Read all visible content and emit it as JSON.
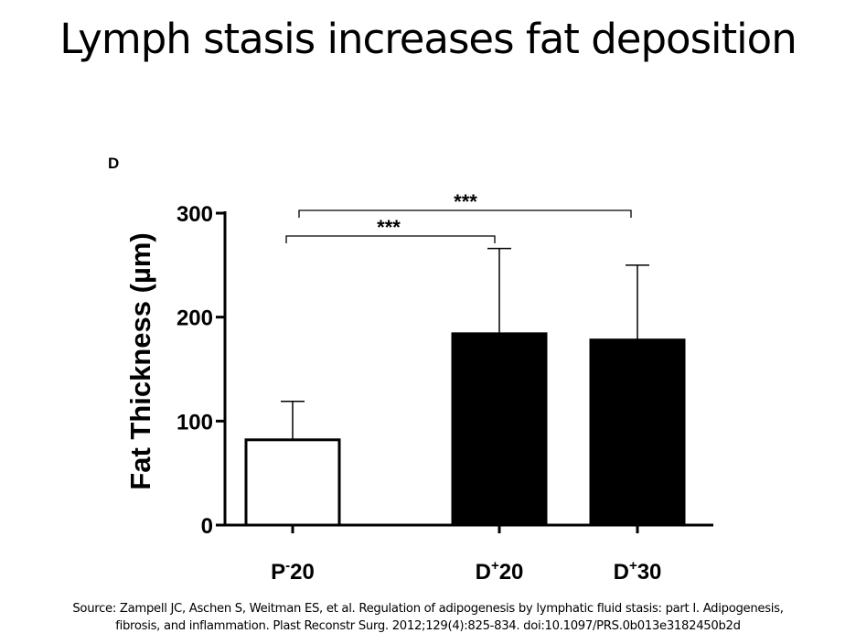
{
  "slide": {
    "title": "Lymph stasis increases fat deposition",
    "source_line1": "Source: Zampell JC, Aschen S, Weitman ES, et al. Regulation of adipogenesis by lymphatic fluid stasis: part I. Adipogenesis,",
    "source_line2": "fibrosis, and inflammation. Plast Reconstr Surg. 2012;129(4):825-834. doi:10.1097/PRS.0b013e3182450b2d"
  },
  "chart_data": {
    "type": "bar",
    "panel_label": "D",
    "ylabel": "Fat Thickness (µm)",
    "ylim": [
      0,
      300
    ],
    "yticks": [
      0,
      100,
      200,
      300
    ],
    "categories": [
      {
        "prefix": "P",
        "sup": "-",
        "suffix": "20"
      },
      {
        "prefix": "D",
        "sup": "+",
        "suffix": "20"
      },
      {
        "prefix": "D",
        "sup": "+",
        "suffix": "30"
      }
    ],
    "values": [
      82,
      184,
      178
    ],
    "error_upper": [
      37,
      82,
      72
    ],
    "bar_fill": [
      "#ffffff",
      "#000000",
      "#000000"
    ],
    "significance": [
      {
        "from": 0,
        "to": 1,
        "label": "***"
      },
      {
        "from": 0,
        "to": 2,
        "label": "***"
      }
    ],
    "grid": false,
    "legend": "none"
  }
}
